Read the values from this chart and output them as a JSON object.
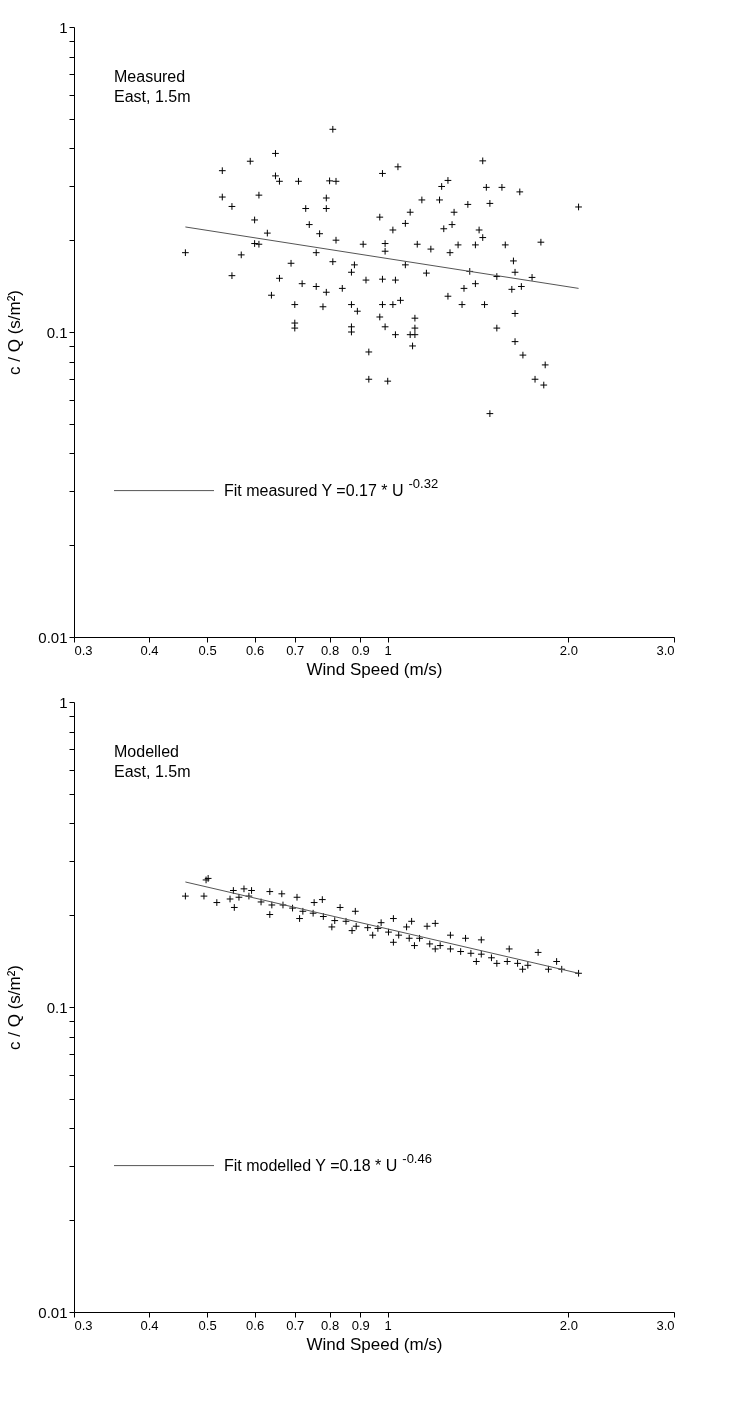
{
  "chart_data": [
    {
      "type": "scatter",
      "annotations": [
        "Measured",
        "East, 1.5m"
      ],
      "xlabel": "Wind Speed (m/s)",
      "ylabel": "c / Q (s/m²)",
      "log": "xy",
      "legend": "bottom left",
      "grid": false,
      "xlim": [
        0.3,
        3
      ],
      "xticks": [
        {
          "value": 0.3,
          "label": "0.3"
        },
        0.4,
        0.5,
        0.6,
        0.7,
        0.8,
        0.9,
        1,
        {
          "value": 2,
          "label": "2.0"
        },
        {
          "value": 3,
          "label": "3.0"
        }
      ],
      "ylim": [
        0.01,
        1
      ],
      "yticks": [
        0.01,
        {
          "value": 0.02,
          "label": null
        },
        {
          "value": 0.03,
          "label": null
        },
        {
          "value": 0.04,
          "label": null
        },
        {
          "value": 0.05,
          "label": null
        },
        {
          "value": 0.06,
          "label": null
        },
        {
          "value": 0.07,
          "label": null
        },
        {
          "value": 0.08,
          "label": null
        },
        {
          "value": 0.09,
          "label": null
        },
        0.1,
        {
          "value": 0.2,
          "label": null
        },
        {
          "value": 0.3,
          "label": null
        },
        {
          "value": 0.4,
          "label": null
        },
        {
          "value": 0.5,
          "label": null
        },
        {
          "value": 0.6,
          "label": null
        },
        {
          "value": 0.7,
          "label": null
        },
        {
          "value": 0.8,
          "label": null
        },
        {
          "value": 0.9,
          "label": null
        },
        1
      ],
      "series": [
        {
          "color": "#000000",
          "marker": "cross",
          "x": [
            0.81,
            0.65,
            0.59,
            0.53,
            1.04,
            1.44,
            0.65,
            0.66,
            0.71,
            0.8,
            0.82,
            0.98,
            1.23,
            1.26,
            1.46,
            1.55,
            1.66,
            0.53,
            0.61,
            0.55,
            0.73,
            0.79,
            0.79,
            2.08,
            1.48,
            1.14,
            1.22,
            1.36,
            1.29,
            1.09,
            0.97,
            0.6,
            1.24,
            1.28,
            1.42,
            1.44,
            1.07,
            1.02,
            0.74,
            0.77,
            0.63,
            0.46,
            0.6,
            0.61,
            0.57,
            0.76,
            0.82,
            0.91,
            0.99,
            0.99,
            1.12,
            1.18,
            1.27,
            1.31,
            1.4,
            1.57,
            1.8,
            0.55,
            0.66,
            0.69,
            0.81,
            0.87,
            0.88,
            1.07,
            1.16,
            1.37,
            1.52,
            1.62,
            1.63,
            1.74,
            0.72,
            0.76,
            0.79,
            0.84,
            0.92,
            0.98,
            1.03,
            1.34,
            1.4,
            1.61,
            1.67,
            0.64,
            0.7,
            0.78,
            0.87,
            0.89,
            0.98,
            1.02,
            1.05,
            1.26,
            1.33,
            1.45,
            0.7,
            0.87,
            0.97,
            1.11,
            1.11,
            1.52,
            1.63,
            1.63,
            1.03,
            1.09,
            0.99,
            0.7,
            0.93,
            0.93,
            1.0,
            1.11,
            1.1,
            1.48,
            1.68,
            1.83,
            1.76,
            1.82,
            0.87
          ],
          "values": [
            0.462,
            0.385,
            0.363,
            0.338,
            0.348,
            0.364,
            0.325,
            0.312,
            0.312,
            0.313,
            0.312,
            0.331,
            0.3,
            0.314,
            0.298,
            0.298,
            0.288,
            0.277,
            0.281,
            0.258,
            0.254,
            0.275,
            0.254,
            0.257,
            0.264,
            0.271,
            0.271,
            0.262,
            0.247,
            0.247,
            0.238,
            0.233,
            0.218,
            0.225,
            0.216,
            0.204,
            0.227,
            0.216,
            0.225,
            0.21,
            0.211,
            0.182,
            0.195,
            0.194,
            0.179,
            0.182,
            0.2,
            0.194,
            0.195,
            0.184,
            0.194,
            0.187,
            0.182,
            0.193,
            0.193,
            0.193,
            0.197,
            0.153,
            0.15,
            0.168,
            0.17,
            0.157,
            0.166,
            0.166,
            0.156,
            0.158,
            0.152,
            0.171,
            0.157,
            0.151,
            0.144,
            0.141,
            0.135,
            0.139,
            0.148,
            0.149,
            0.148,
            0.139,
            0.144,
            0.138,
            0.141,
            0.132,
            0.123,
            0.121,
            0.123,
            0.117,
            0.123,
            0.123,
            0.127,
            0.131,
            0.123,
            0.123,
            0.107,
            0.104,
            0.112,
            0.111,
            0.103,
            0.103,
            0.115,
            0.093,
            0.098,
            0.098,
            0.104,
            0.103,
            0.086,
            0.07,
            0.069,
            0.098,
            0.09,
            0.054,
            0.084,
            0.078,
            0.07,
            0.067,
            0.1
          ]
        },
        {
          "type": "line",
          "name": "Fit measured Y =0.17 * U $^{-0.32}$",
          "color": "#555555",
          "x": [
            0.46,
            2.08
          ],
          "values": [
            0.221,
            0.139
          ]
        }
      ]
    },
    {
      "type": "scatter",
      "annotations": [
        "Modelled",
        "East, 1.5m"
      ],
      "xlabel": "Wind Speed (m/s)",
      "ylabel": "c / Q (s/m²)",
      "log": "xy",
      "legend": "bottom left",
      "grid": false,
      "xlim": [
        0.3,
        3
      ],
      "xticks": [
        {
          "value": 0.3,
          "label": "0.3"
        },
        0.4,
        0.5,
        0.6,
        0.7,
        0.8,
        0.9,
        1,
        {
          "value": 2,
          "label": "2.0"
        },
        {
          "value": 3,
          "label": "3.0"
        }
      ],
      "ylim": [
        0.01,
        1
      ],
      "yticks": [
        0.01,
        {
          "value": 0.02,
          "label": null
        },
        {
          "value": 0.03,
          "label": null
        },
        {
          "value": 0.04,
          "label": null
        },
        {
          "value": 0.05,
          "label": null
        },
        {
          "value": 0.06,
          "label": null
        },
        {
          "value": 0.07,
          "label": null
        },
        {
          "value": 0.08,
          "label": null
        },
        {
          "value": 0.09,
          "label": null
        },
        0.1,
        {
          "value": 0.2,
          "label": null
        },
        {
          "value": 0.3,
          "label": null
        },
        {
          "value": 0.4,
          "label": null
        },
        {
          "value": 0.5,
          "label": null
        },
        {
          "value": 0.6,
          "label": null
        },
        {
          "value": 0.7,
          "label": null
        },
        {
          "value": 0.8,
          "label": null
        },
        {
          "value": 0.9,
          "label": null
        },
        1
      ],
      "series": [
        {
          "color": "#000000",
          "marker": "cross",
          "x": [
            0.46,
            0.494,
            0.498,
            0.502,
            0.519,
            0.546,
            0.553,
            0.555,
            0.565,
            0.576,
            0.587,
            0.593,
            0.615,
            0.636,
            0.636,
            0.641,
            0.666,
            0.669,
            0.694,
            0.706,
            0.713,
            0.722,
            0.751,
            0.754,
            0.778,
            0.781,
            0.807,
            0.816,
            0.833,
            0.852,
            0.872,
            0.883,
            0.886,
            0.926,
            0.944,
            0.963,
            0.975,
            1.003,
            1.022,
            1.022,
            1.043,
            1.075,
            1.086,
            1.096,
            1.108,
            1.13,
            1.163,
            1.175,
            1.2,
            1.2,
            1.223,
            1.272,
            1.272,
            1.323,
            1.348,
            1.376,
            1.405,
            1.432,
            1.432,
            1.489,
            1.52,
            1.582,
            1.594,
            1.646,
            1.678,
            1.712,
            1.781,
            1.853,
            1.912,
            1.95,
            2.08
          ],
          "values": [
            0.231,
            0.231,
            0.261,
            0.264,
            0.22,
            0.226,
            0.241,
            0.212,
            0.229,
            0.244,
            0.231,
            0.241,
            0.221,
            0.239,
            0.201,
            0.216,
            0.235,
            0.216,
            0.211,
            0.229,
            0.195,
            0.206,
            0.203,
            0.22,
            0.225,
            0.198,
            0.183,
            0.192,
            0.212,
            0.191,
            0.178,
            0.206,
            0.184,
            0.182,
            0.172,
            0.181,
            0.189,
            0.176,
            0.195,
            0.163,
            0.172,
            0.183,
            0.168,
            0.191,
            0.159,
            0.168,
            0.184,
            0.161,
            0.188,
            0.155,
            0.159,
            0.172,
            0.155,
            0.152,
            0.168,
            0.15,
            0.141,
            0.166,
            0.149,
            0.145,
            0.139,
            0.141,
            0.155,
            0.139,
            0.133,
            0.137,
            0.151,
            0.133,
            0.141,
            0.133,
            0.129
          ]
        },
        {
          "type": "line",
          "name": "Fit modelled Y =0.18 * U $^{-0.46}$",
          "color": "#555555",
          "x": [
            0.46,
            2.08
          ],
          "values": [
            0.257,
            0.129
          ]
        }
      ]
    }
  ]
}
